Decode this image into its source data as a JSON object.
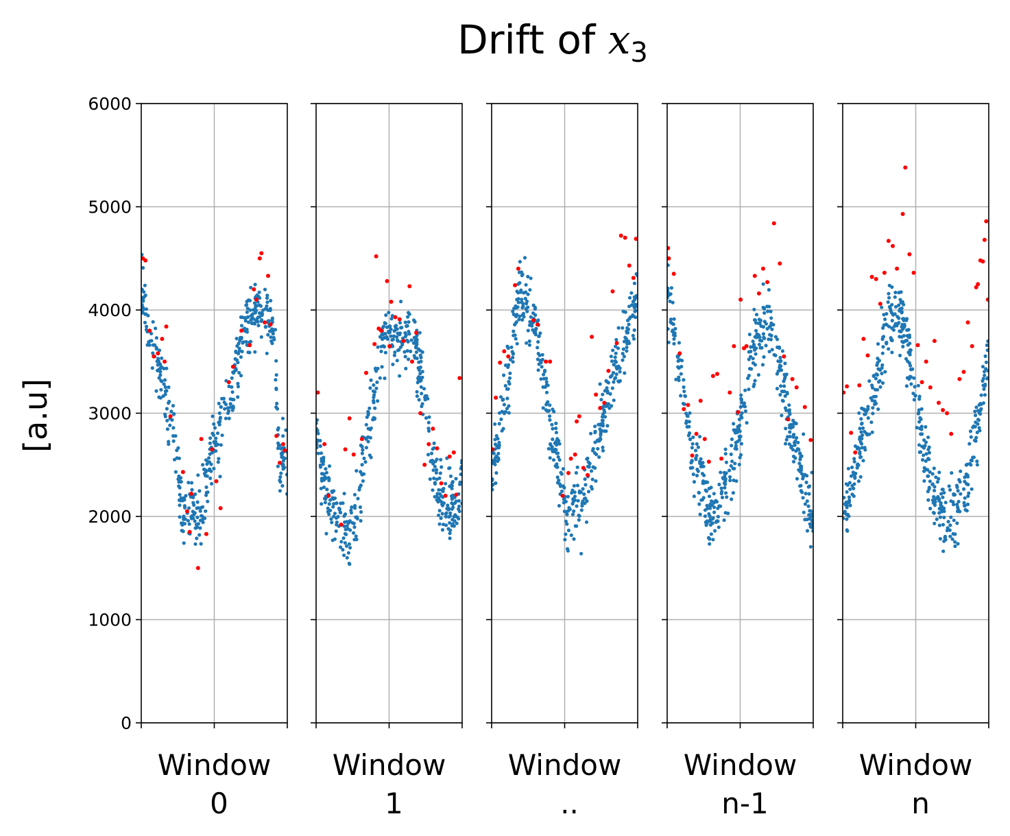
{
  "chart_data": {
    "type": "scatter",
    "title": "Drift of x3",
    "title_parts": {
      "prefix": "Drift of ",
      "variable": "x",
      "subscript": "3"
    },
    "ylabel": "[a.u]",
    "ylim": [
      0,
      6000
    ],
    "yticks": [
      "0",
      "1000",
      "2000",
      "3000",
      "4000",
      "5000",
      "6000"
    ],
    "grid": true,
    "sharey": true,
    "colors": {
      "normal": "#1f77b4",
      "outlier": "#ff0000"
    },
    "panels": [
      {
        "xlabel_line1": "Window",
        "xlabel_line2": "0",
        "curve": [
          [
            0,
            4300
          ],
          [
            0.1,
            3650
          ],
          [
            0.2,
            3550
          ],
          [
            0.3,
            3100
          ],
          [
            0.4,
            2700
          ],
          [
            0.5,
            2050
          ],
          [
            0.6,
            2100
          ],
          [
            0.7,
            2000
          ],
          [
            0.8,
            2400
          ],
          [
            0.9,
            2750
          ],
          [
            1.0,
            3050
          ],
          [
            1.1,
            3200
          ],
          [
            1.2,
            3650
          ],
          [
            1.3,
            3900
          ],
          [
            1.4,
            4050
          ],
          [
            1.5,
            3950
          ],
          [
            1.6,
            3750
          ],
          [
            1.65,
            2450
          ],
          [
            1.7,
            2600
          ],
          [
            1.75,
            2500
          ]
        ],
        "outliers": [
          [
            0.02,
            4500
          ],
          [
            0.05,
            4480
          ],
          [
            0.1,
            3800
          ],
          [
            0.15,
            3550
          ],
          [
            0.2,
            3580
          ],
          [
            0.25,
            3720
          ],
          [
            0.28,
            3500
          ],
          [
            0.3,
            3840
          ],
          [
            0.35,
            2970
          ],
          [
            0.5,
            2430
          ],
          [
            0.55,
            2050
          ],
          [
            0.58,
            1850
          ],
          [
            0.6,
            2220
          ],
          [
            0.68,
            1500
          ],
          [
            0.72,
            2750
          ],
          [
            0.78,
            1830
          ],
          [
            0.85,
            2650
          ],
          [
            0.9,
            2340
          ],
          [
            0.95,
            2080
          ],
          [
            1.05,
            3300
          ],
          [
            1.1,
            3450
          ],
          [
            1.2,
            3800
          ],
          [
            1.3,
            3660
          ],
          [
            1.35,
            4200
          ],
          [
            1.38,
            4100
          ],
          [
            1.42,
            4500
          ],
          [
            1.44,
            4550
          ],
          [
            1.48,
            3880
          ],
          [
            1.52,
            4330
          ],
          [
            1.55,
            3860
          ],
          [
            1.62,
            2780
          ],
          [
            1.66,
            2520
          ],
          [
            1.7,
            2700
          ],
          [
            1.72,
            2640
          ]
        ]
      },
      {
        "xlabel_line1": "Window",
        "xlabel_line2": "1",
        "curve": [
          [
            0,
            2800
          ],
          [
            0.1,
            2300
          ],
          [
            0.2,
            2100
          ],
          [
            0.3,
            1950
          ],
          [
            0.4,
            1850
          ],
          [
            0.5,
            2200
          ],
          [
            0.6,
            2700
          ],
          [
            0.7,
            3200
          ],
          [
            0.8,
            3700
          ],
          [
            0.9,
            3800
          ],
          [
            1.0,
            3700
          ],
          [
            1.1,
            3750
          ],
          [
            1.2,
            3600
          ],
          [
            1.3,
            3100
          ],
          [
            1.4,
            2500
          ],
          [
            1.5,
            2200
          ],
          [
            1.6,
            2100
          ],
          [
            1.7,
            2100
          ],
          [
            1.75,
            2500
          ]
        ],
        "outliers": [
          [
            0.02,
            3200
          ],
          [
            0.1,
            2700
          ],
          [
            0.15,
            2200
          ],
          [
            0.3,
            1920
          ],
          [
            0.35,
            2650
          ],
          [
            0.4,
            2950
          ],
          [
            0.45,
            2600
          ],
          [
            0.55,
            2750
          ],
          [
            0.6,
            3390
          ],
          [
            0.7,
            3670
          ],
          [
            0.72,
            4520
          ],
          [
            0.75,
            3820
          ],
          [
            0.78,
            3800
          ],
          [
            0.85,
            4280
          ],
          [
            0.88,
            3650
          ],
          [
            0.9,
            4080
          ],
          [
            0.95,
            3930
          ],
          [
            1.0,
            3910
          ],
          [
            1.05,
            3700
          ],
          [
            1.12,
            4230
          ],
          [
            1.15,
            3500
          ],
          [
            1.2,
            3780
          ],
          [
            1.25,
            3000
          ],
          [
            1.3,
            2500
          ],
          [
            1.35,
            2700
          ],
          [
            1.4,
            2850
          ],
          [
            1.45,
            2660
          ],
          [
            1.5,
            2320
          ],
          [
            1.55,
            2200
          ],
          [
            1.6,
            2580
          ],
          [
            1.65,
            2620
          ],
          [
            1.72,
            3340
          ],
          [
            1.68,
            2210
          ]
        ]
      },
      {
        "xlabel_line1": "Window",
        "xlabel_line2": "..",
        "curve": [
          [
            0,
            2300
          ],
          [
            0.1,
            2900
          ],
          [
            0.2,
            3400
          ],
          [
            0.3,
            4000
          ],
          [
            0.4,
            4150
          ],
          [
            0.5,
            3900
          ],
          [
            0.6,
            3400
          ],
          [
            0.7,
            2900
          ],
          [
            0.8,
            2600
          ],
          [
            0.85,
            2200
          ],
          [
            0.9,
            2000
          ],
          [
            1.0,
            2050
          ],
          [
            1.1,
            2200
          ],
          [
            1.2,
            2500
          ],
          [
            1.3,
            2900
          ],
          [
            1.4,
            3200
          ],
          [
            1.5,
            3500
          ],
          [
            1.6,
            3700
          ],
          [
            1.7,
            4000
          ],
          [
            1.75,
            4200
          ]
        ],
        "outliers": [
          [
            0.01,
            2650
          ],
          [
            0.05,
            3150
          ],
          [
            0.1,
            3490
          ],
          [
            0.15,
            3600
          ],
          [
            0.2,
            3550
          ],
          [
            0.28,
            4240
          ],
          [
            0.32,
            4400
          ],
          [
            0.5,
            3900
          ],
          [
            0.55,
            3860
          ],
          [
            0.65,
            3500
          ],
          [
            0.7,
            3500
          ],
          [
            0.85,
            2200
          ],
          [
            0.92,
            2420
          ],
          [
            0.95,
            2560
          ],
          [
            1.0,
            2600
          ],
          [
            1.02,
            2920
          ],
          [
            1.05,
            2970
          ],
          [
            1.1,
            2470
          ],
          [
            1.15,
            2400
          ],
          [
            1.2,
            3740
          ],
          [
            1.25,
            3180
          ],
          [
            1.3,
            3050
          ],
          [
            1.35,
            3100
          ],
          [
            1.4,
            3410
          ],
          [
            1.45,
            4180
          ],
          [
            1.5,
            3680
          ],
          [
            1.55,
            4720
          ],
          [
            1.6,
            4700
          ],
          [
            1.65,
            4430
          ],
          [
            1.7,
            4310
          ],
          [
            1.73,
            4690
          ]
        ]
      },
      {
        "xlabel_line1": "Window",
        "xlabel_line2": "n-1",
        "curve": [
          [
            0,
            4200
          ],
          [
            0.1,
            3700
          ],
          [
            0.2,
            3200
          ],
          [
            0.3,
            2600
          ],
          [
            0.4,
            2400
          ],
          [
            0.5,
            2050
          ],
          [
            0.6,
            2000
          ],
          [
            0.7,
            2300
          ],
          [
            0.8,
            2600
          ],
          [
            0.9,
            3000
          ],
          [
            1.0,
            3500
          ],
          [
            1.1,
            3800
          ],
          [
            1.2,
            3950
          ],
          [
            1.3,
            3650
          ],
          [
            1.4,
            3200
          ],
          [
            1.5,
            2800
          ],
          [
            1.6,
            2500
          ],
          [
            1.7,
            2100
          ],
          [
            1.75,
            2000
          ]
        ],
        "outliers": [
          [
            0.01,
            4600
          ],
          [
            0.02,
            4500
          ],
          [
            0.08,
            4350
          ],
          [
            0.15,
            3580
          ],
          [
            0.2,
            3040
          ],
          [
            0.25,
            3080
          ],
          [
            0.3,
            2590
          ],
          [
            0.35,
            2800
          ],
          [
            0.4,
            3120
          ],
          [
            0.45,
            2750
          ],
          [
            0.5,
            2530
          ],
          [
            0.55,
            3360
          ],
          [
            0.6,
            3380
          ],
          [
            0.65,
            2560
          ],
          [
            0.75,
            3200
          ],
          [
            0.8,
            3650
          ],
          [
            0.85,
            3010
          ],
          [
            0.88,
            4100
          ],
          [
            0.92,
            3630
          ],
          [
            0.95,
            3650
          ],
          [
            1.05,
            4330
          ],
          [
            1.1,
            4160
          ],
          [
            1.15,
            4400
          ],
          [
            1.2,
            4270
          ],
          [
            1.28,
            4840
          ],
          [
            1.35,
            4450
          ],
          [
            1.4,
            3550
          ],
          [
            1.45,
            2940
          ],
          [
            1.5,
            3330
          ],
          [
            1.55,
            3250
          ],
          [
            1.65,
            3060
          ],
          [
            1.72,
            2740
          ]
        ]
      },
      {
        "xlabel_line1": "Window",
        "xlabel_line2": "n",
        "curve": [
          [
            0,
            2000
          ],
          [
            0.1,
            2300
          ],
          [
            0.2,
            2700
          ],
          [
            0.3,
            3000
          ],
          [
            0.4,
            3300
          ],
          [
            0.5,
            3700
          ],
          [
            0.6,
            4000
          ],
          [
            0.7,
            3900
          ],
          [
            0.8,
            3600
          ],
          [
            0.9,
            3000
          ],
          [
            1.0,
            2500
          ],
          [
            1.1,
            2200
          ],
          [
            1.2,
            2000
          ],
          [
            1.3,
            2000
          ],
          [
            1.4,
            2100
          ],
          [
            1.5,
            2400
          ],
          [
            1.6,
            2800
          ],
          [
            1.7,
            3300
          ],
          [
            1.75,
            3700
          ]
        ],
        "outliers": [
          [
            0.01,
            3200
          ],
          [
            0.05,
            3260
          ],
          [
            0.1,
            2810
          ],
          [
            0.15,
            2620
          ],
          [
            0.2,
            3270
          ],
          [
            0.25,
            3720
          ],
          [
            0.3,
            3560
          ],
          [
            0.35,
            4320
          ],
          [
            0.4,
            4300
          ],
          [
            0.45,
            4060
          ],
          [
            0.5,
            4360
          ],
          [
            0.55,
            4670
          ],
          [
            0.6,
            4620
          ],
          [
            0.65,
            4400
          ],
          [
            0.75,
            5380
          ],
          [
            0.72,
            4930
          ],
          [
            0.8,
            4540
          ],
          [
            0.85,
            4360
          ],
          [
            0.9,
            3660
          ],
          [
            0.95,
            3300
          ],
          [
            1.0,
            3500
          ],
          [
            1.05,
            3250
          ],
          [
            1.1,
            3700
          ],
          [
            1.15,
            3100
          ],
          [
            1.2,
            3030
          ],
          [
            1.25,
            3000
          ],
          [
            1.3,
            2800
          ],
          [
            1.4,
            3330
          ],
          [
            1.45,
            3400
          ],
          [
            1.5,
            3880
          ],
          [
            1.55,
            3650
          ],
          [
            1.6,
            4220
          ],
          [
            1.65,
            4480
          ],
          [
            1.68,
            4470
          ],
          [
            1.7,
            4680
          ],
          [
            1.72,
            4860
          ],
          [
            1.74,
            4100
          ],
          [
            1.62,
            4250
          ]
        ]
      }
    ]
  }
}
